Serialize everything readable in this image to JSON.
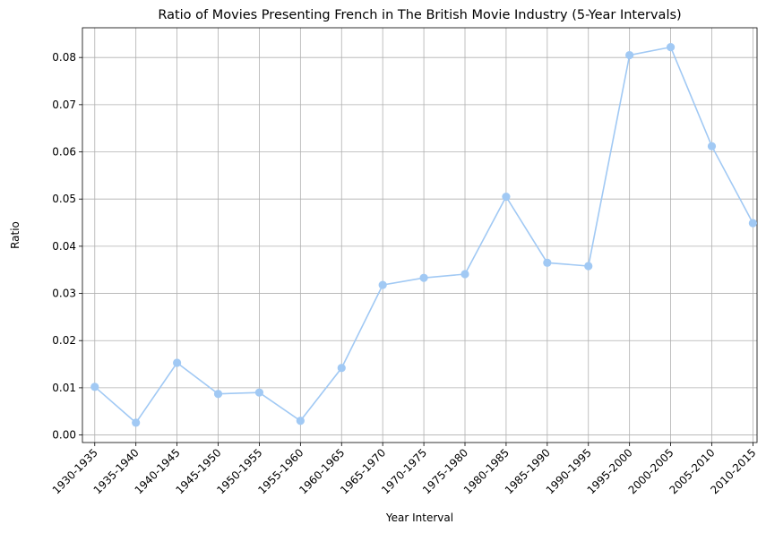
{
  "chart_data": {
    "type": "line",
    "title": "Ratio of Movies Presenting French in The British Movie Industry (5-Year Intervals)",
    "xlabel": "Year Interval",
    "ylabel": "Ratio",
    "categories": [
      "1930-1935",
      "1935-1940",
      "1940-1945",
      "1945-1950",
      "1950-1955",
      "1955-1960",
      "1960-1965",
      "1965-1970",
      "1970-1975",
      "1975-1980",
      "1980-1985",
      "1985-1990",
      "1990-1995",
      "1995-2000",
      "2000-2005",
      "2005-2010",
      "2010-2015"
    ],
    "series": [
      {
        "values": [
          0.0102,
          0.0026,
          0.0153,
          0.0087,
          0.009,
          0.003,
          0.0142,
          0.0318,
          0.0333,
          0.0341,
          0.0505,
          0.0365,
          0.0358,
          0.0805,
          0.0822,
          0.0612,
          0.0449
        ],
        "color": "#a1c9f4"
      }
    ],
    "yticks": [
      "0.00",
      "0.01",
      "0.02",
      "0.03",
      "0.04",
      "0.05",
      "0.06",
      "0.07",
      "0.08"
    ],
    "ylim": [
      -0.0016,
      0.0863
    ],
    "grid": true,
    "legend": "none"
  }
}
